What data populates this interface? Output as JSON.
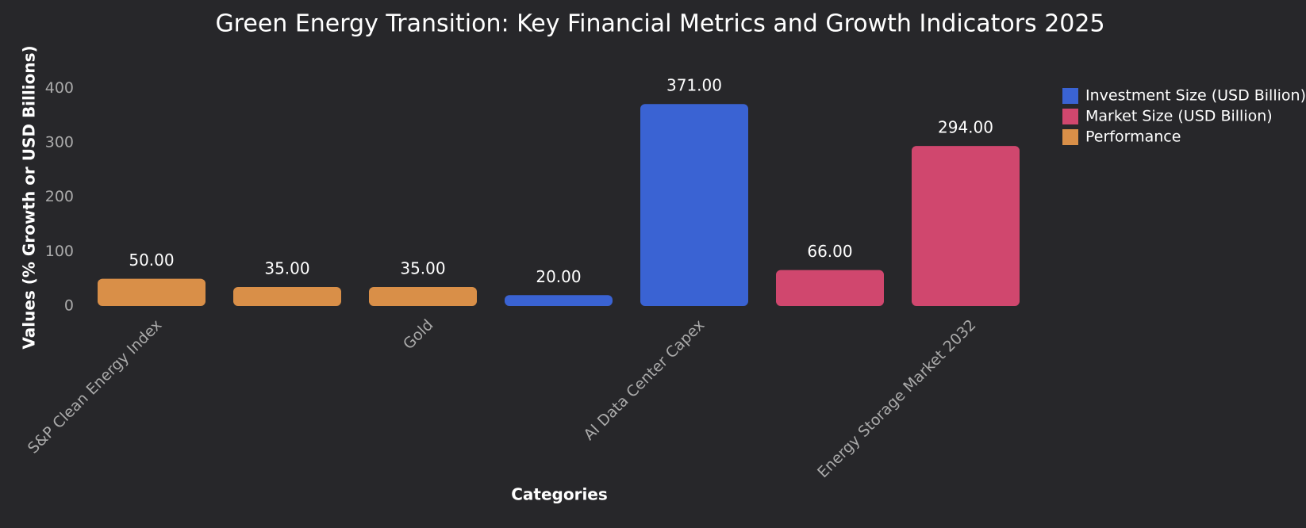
{
  "chart_data": {
    "type": "bar",
    "title": "Green Energy Transition: Key Financial Metrics and Growth Indicators 2025",
    "x_label": "Categories",
    "y_label": "Values (% Growth or USD Billions)",
    "categories": [
      "S&P Clean Energy Index",
      null,
      "Gold",
      null,
      "AI Data Center Capex",
      null,
      "Energy Storage Market 2032"
    ],
    "series": [
      {
        "name": "Investment Size (USD Billion)",
        "color": "#3a63d3",
        "values": [
          null,
          null,
          null,
          20,
          371,
          null,
          null
        ],
        "value_labels": [
          null,
          null,
          null,
          "20.00",
          "371.00",
          null,
          null
        ]
      },
      {
        "name": "Market Size (USD Billion)",
        "color": "#d0476e",
        "values": [
          null,
          null,
          null,
          null,
          null,
          66,
          294
        ],
        "value_labels": [
          null,
          null,
          null,
          null,
          null,
          "66.00",
          "294.00"
        ]
      },
      {
        "name": "Performance",
        "color": "#d98f48",
        "values": [
          50,
          35,
          35,
          null,
          null,
          null,
          null
        ],
        "value_labels": [
          "50.00",
          "35.00",
          "35.00",
          null,
          null,
          null,
          null
        ]
      }
    ],
    "ylim": [
      0,
      450
    ],
    "yticks": [
      0,
      100,
      200,
      300,
      400
    ],
    "grid": false,
    "legend": "upper right"
  }
}
